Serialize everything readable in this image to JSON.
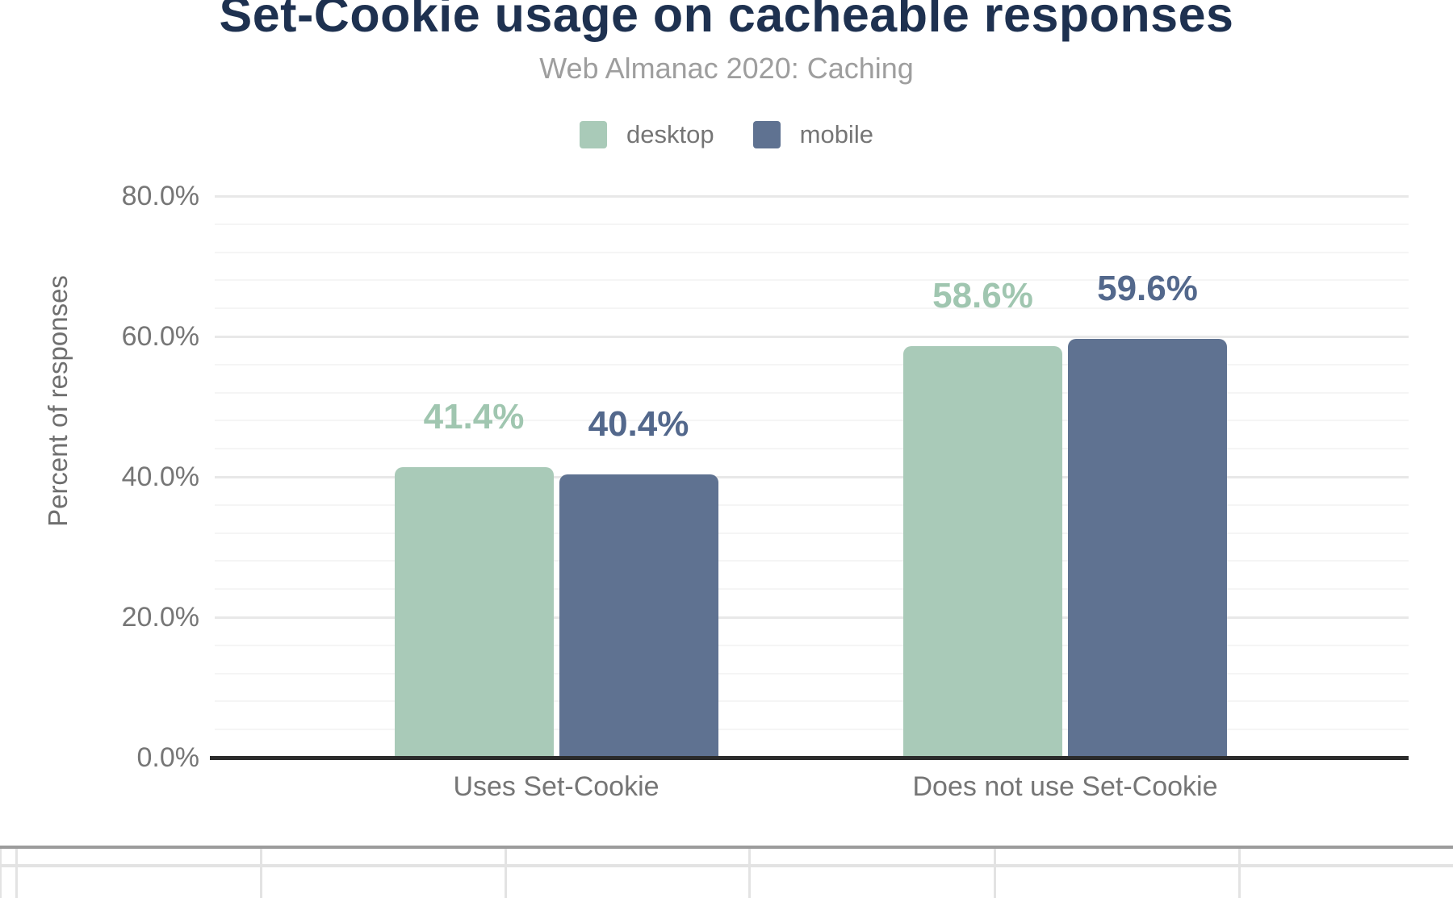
{
  "chart_data": {
    "type": "bar",
    "title": "Set-Cookie usage on cacheable responses",
    "subtitle": "Web Almanac 2020: Caching",
    "categories": [
      "Uses Set-Cookie",
      "Does not use Set-Cookie"
    ],
    "series": [
      {
        "name": "desktop",
        "color": "#a9cab8",
        "label_color": "#a0c6b0",
        "values": [
          41.4,
          58.6
        ],
        "labels": [
          "41.4%",
          "58.6%"
        ]
      },
      {
        "name": "mobile",
        "color": "#5f7291",
        "label_color": "#53688c",
        "values": [
          40.4,
          59.6
        ],
        "labels": [
          "40.4%",
          "59.6%"
        ]
      }
    ],
    "xlabel": "",
    "ylabel": "Percent of responses",
    "ylim": [
      0,
      80
    ],
    "yticks": [
      {
        "value": 80,
        "label": "80.0%"
      },
      {
        "value": 60,
        "label": "60.0%"
      },
      {
        "value": 40,
        "label": "40.0%"
      },
      {
        "value": 20,
        "label": "20.0%"
      },
      {
        "value": 0,
        "label": "0.0%"
      }
    ],
    "minor_grid_step_percent": 4,
    "grid": true,
    "legend_position": "top"
  },
  "legend": {
    "items": [
      {
        "label": "desktop",
        "color": "#a9cab8"
      },
      {
        "label": "mobile",
        "color": "#5f7291"
      }
    ]
  },
  "colors": {
    "title": "#1e3150",
    "subtitle": "#9e9e9e",
    "axis_text": "#767676",
    "axis_line": "#2b2b2b",
    "major_grid": "#e8e8e8",
    "minor_grid": "#f5f5f5",
    "table_top_border": "#9c9c9c",
    "table_grid": "#e3e3e3"
  }
}
